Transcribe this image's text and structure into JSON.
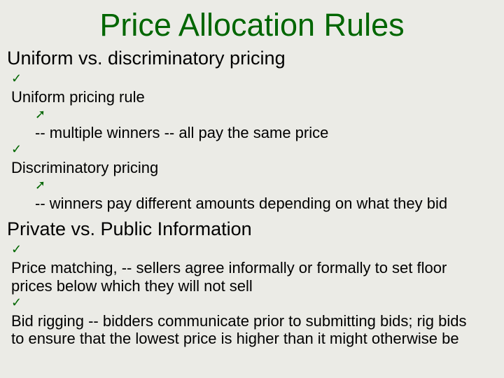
{
  "title": "Price Allocation Rules",
  "section1": {
    "heading": "Uniform vs. discriminatory pricing",
    "item1": "Uniform pricing rule",
    "item1_sub": "-- multiple winners -- all pay the same price",
    "item2": "Discriminatory pricing",
    "item2_sub": "-- winners pay different amounts depending on what they bid"
  },
  "section2": {
    "heading": "Private vs. Public Information",
    "item1": "Price matching,  -- sellers agree informally or formally to set floor prices below which they will not sell",
    "item2": "Bid rigging -- bidders communicate prior to submitting bids; rig bids to ensure that the lowest price is higher than it might otherwise be"
  },
  "colors": {
    "accent": "#006600",
    "text": "#000000",
    "background": "#ebebe6"
  },
  "fonts": {
    "family": "Comic Sans MS",
    "title_size": 45,
    "heading_size": 27,
    "body_size": 22
  },
  "bullets": {
    "check": "✓",
    "arrow": "➚"
  }
}
